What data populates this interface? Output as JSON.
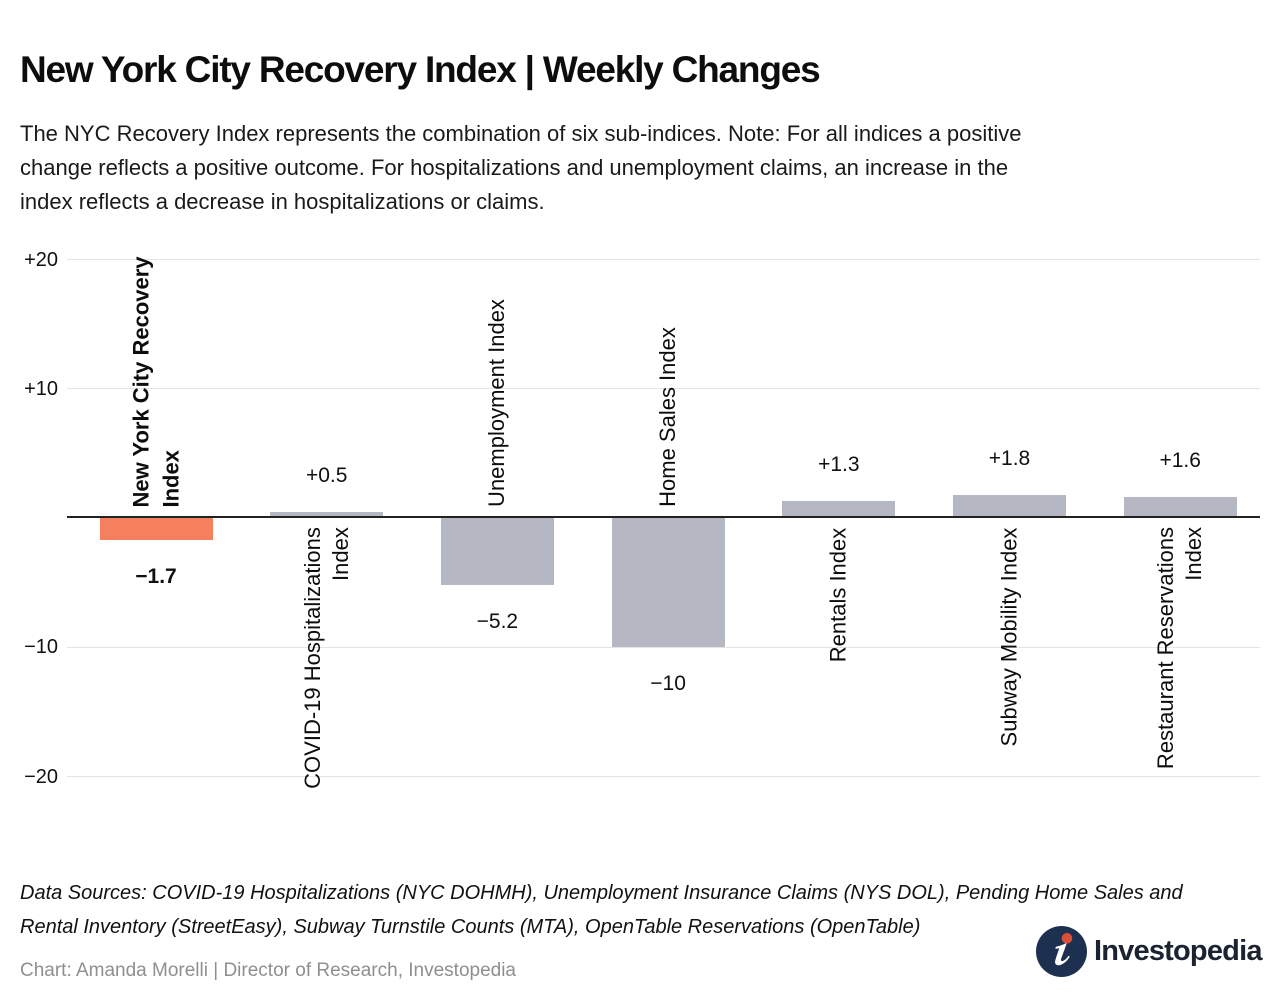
{
  "header": {
    "title": "New York City Recovery Index | Weekly Changes",
    "subtitle": "The NYC Recovery Index represents the combination of six sub-indices. Note: For all indices a positive\nchange reflects a positive outcome. For hospitalizations and unemployment claims, an increase in the\nindex reflects a decrease in hospitalizations or claims."
  },
  "chart_data": {
    "type": "bar",
    "title": "New York City Recovery Index | Weekly Changes",
    "xlabel": "",
    "ylabel": "",
    "ylim": [
      -20,
      20
    ],
    "grid": true,
    "legend": "none",
    "y_ticks": [
      {
        "value": 20,
        "label": "+20"
      },
      {
        "value": 10,
        "label": "+10"
      },
      {
        "value": -10,
        "label": "−10"
      },
      {
        "value": -20,
        "label": "−20"
      }
    ],
    "bars": [
      {
        "category": "New York City Recovery Index",
        "label_lines": "New York City Recovery\nIndex",
        "value": -1.7,
        "value_label": "−1.7",
        "color": "#F5805E",
        "emphasis": true
      },
      {
        "category": "COVID-19 Hospitalizations Index",
        "label_lines": "COVID-19 Hospitalizations\nIndex",
        "value": 0.5,
        "value_label": "+0.5",
        "color": "#B5B7C3",
        "emphasis": false
      },
      {
        "category": "Unemployment Index",
        "label_lines": "Unemployment Index",
        "value": -5.2,
        "value_label": "−5.2",
        "color": "#B5B7C3",
        "emphasis": false
      },
      {
        "category": "Home Sales Index",
        "label_lines": "Home Sales Index",
        "value": -10,
        "value_label": "−10",
        "color": "#B5B7C3",
        "emphasis": false
      },
      {
        "category": "Rentals Index",
        "label_lines": "Rentals Index",
        "value": 1.3,
        "value_label": "+1.3",
        "color": "#B5B7C3",
        "emphasis": false
      },
      {
        "category": "Subway Mobility Index",
        "label_lines": "Subway Mobility Index",
        "value": 1.8,
        "value_label": "+1.8",
        "color": "#B5B7C3",
        "emphasis": false
      },
      {
        "category": "Restaurant Reservations Index",
        "label_lines": "Restaurant Reservations\nIndex",
        "value": 1.6,
        "value_label": "+1.6",
        "color": "#B5B7C3",
        "emphasis": false
      }
    ]
  },
  "footer": {
    "data_sources": "Data Sources: COVID-19 Hospitalizations (NYC DOHMH), Unemployment Insurance Claims (NYS DOL), Pending Home Sales and\nRental Inventory (StreetEasy), Subway Turnstile Counts (MTA), OpenTable Reservations (OpenTable)",
    "credit": "Chart: Amanda Morelli | Director of Research, Investopedia",
    "logo_text": "Investopedia"
  },
  "colors": {
    "accent_bar": "#F5805E",
    "default_bar": "#B5B7C3",
    "gridline": "#E4E4E4",
    "axis_line": "#222222",
    "credit_text": "#8F8F8F",
    "logo_navy": "#1E3050",
    "logo_dot": "#D94F38",
    "logo_wordmark": "#1B2330"
  }
}
